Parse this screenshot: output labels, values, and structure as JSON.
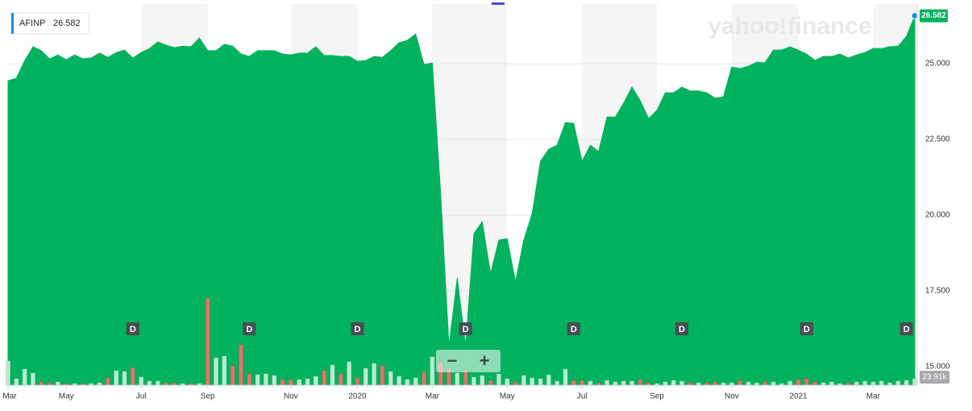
{
  "chart_data": {
    "type": "area",
    "watermark": "yahoo!finance",
    "categories": [
      "Mar",
      null,
      null,
      null,
      null,
      null,
      null,
      "May",
      null,
      null,
      null,
      null,
      null,
      null,
      null,
      null,
      "Jul",
      null,
      null,
      null,
      null,
      null,
      null,
      null,
      "Sep",
      null,
      null,
      null,
      null,
      null,
      null,
      null,
      null,
      null,
      "Nov",
      null,
      null,
      null,
      null,
      null,
      null,
      null,
      "2020",
      null,
      null,
      null,
      null,
      null,
      null,
      null,
      null,
      "Mar",
      null,
      null,
      null,
      null,
      null,
      null,
      null,
      null,
      "May",
      null,
      null,
      null,
      null,
      null,
      null,
      null,
      null,
      "Jul",
      null,
      null,
      null,
      null,
      null,
      null,
      null,
      null,
      "Sep",
      null,
      null,
      null,
      null,
      null,
      null,
      null,
      null,
      "Nov",
      null,
      null,
      null,
      null,
      null,
      null,
      null,
      "2021",
      null,
      null,
      null,
      null,
      null,
      null,
      null,
      null,
      "Mar",
      null,
      null,
      null,
      null,
      null
    ],
    "series": [
      {
        "name": "AFINP",
        "color": "#00b15d",
        "values": [
          24.44,
          24.52,
          25.1,
          25.56,
          25.43,
          25.16,
          25.29,
          25.13,
          25.29,
          25.16,
          25.19,
          25.35,
          25.21,
          25.37,
          25.45,
          25.19,
          25.37,
          25.5,
          25.72,
          25.61,
          25.53,
          25.58,
          25.56,
          25.85,
          25.43,
          25.43,
          25.64,
          25.58,
          25.32,
          25.24,
          25.43,
          25.43,
          25.43,
          25.32,
          25.29,
          25.35,
          25.35,
          25.56,
          25.27,
          25.27,
          25.24,
          25.24,
          25.08,
          25.11,
          25.24,
          25.21,
          25.43,
          25.69,
          25.77,
          25.98,
          24.97,
          25.03,
          20.72,
          15.67,
          17.93,
          15.67,
          19.39,
          19.79,
          18.06,
          19.18,
          19.23,
          17.8,
          19.18,
          20.05,
          21.78,
          22.18,
          22.31,
          23.06,
          23.03,
          21.78,
          22.31,
          22.1,
          23.24,
          23.24,
          23.7,
          24.23,
          23.78,
          23.19,
          23.46,
          24.04,
          24.04,
          24.23,
          24.1,
          24.1,
          24.04,
          23.86,
          23.91,
          24.89,
          24.84,
          24.92,
          25.05,
          25.03,
          25.45,
          25.45,
          25.56,
          25.45,
          25.32,
          25.11,
          25.24,
          25.24,
          25.32,
          25.19,
          25.29,
          25.37,
          25.5,
          25.5,
          25.56,
          25.58,
          25.9,
          26.582
        ]
      }
    ],
    "ylim": [
      14.39,
      26.97
    ],
    "yticks": [
      {
        "value": 15,
        "label": "15.000"
      },
      {
        "value": 17.5,
        "label": "17.500"
      },
      {
        "value": 20,
        "label": "20.000"
      },
      {
        "value": 22.5,
        "label": "22.500"
      },
      {
        "value": 25,
        "label": "25.000"
      }
    ],
    "grid": true,
    "volume": {
      "up_color": "#b9ecd0",
      "down_color": "#d9786b",
      "values": [
        90000,
        24000,
        60000,
        45000,
        12000,
        9000,
        12000,
        6000,
        6000,
        6000,
        6000,
        9000,
        27000,
        54000,
        51000,
        66000,
        30000,
        15000,
        15000,
        9000,
        9000,
        6000,
        6000,
        6000,
        324000,
        102000,
        108000,
        72000,
        150000,
        42000,
        39000,
        42000,
        36000,
        21000,
        21000,
        21000,
        24000,
        33000,
        54000,
        75000,
        42000,
        87000,
        27000,
        63000,
        81000,
        72000,
        51000,
        33000,
        21000,
        27000,
        48000,
        105000,
        84000,
        60000,
        45000,
        57000,
        30000,
        36000,
        18000,
        42000,
        24000,
        12000,
        36000,
        27000,
        24000,
        39000,
        15000,
        60000,
        18000,
        18000,
        15000,
        9000,
        18000,
        12000,
        15000,
        15000,
        21000,
        9000,
        6000,
        12000,
        18000,
        15000,
        9000,
        9000,
        9000,
        12000,
        9000,
        9000,
        18000,
        12000,
        9000,
        12000,
        12000,
        6000,
        15000,
        21000,
        24000,
        12000,
        9000,
        12000,
        6000,
        9000,
        12000,
        15000,
        12000,
        15000,
        9000,
        15000,
        18000,
        23910
      ],
      "value_labels": [
        null,
        null,
        null,
        null,
        null,
        null,
        null,
        null,
        null,
        null,
        null,
        null,
        null,
        null,
        null,
        null,
        null,
        null,
        null,
        null,
        null,
        null,
        null,
        null,
        null,
        null,
        null,
        null,
        null,
        null,
        null,
        null,
        null,
        null,
        null,
        null,
        null,
        null,
        null,
        null,
        null,
        null,
        null,
        null,
        null,
        null,
        null,
        null,
        null,
        null,
        null,
        null,
        null,
        null,
        null,
        null,
        null,
        null,
        null,
        null,
        null,
        null,
        null,
        null,
        null,
        null,
        null,
        null,
        null,
        null,
        null,
        null,
        null,
        null,
        null,
        null,
        null,
        null,
        null,
        null,
        null,
        null,
        null,
        null,
        null,
        null,
        null,
        null,
        null,
        null,
        null,
        null,
        null,
        null,
        null,
        null,
        null,
        null,
        null,
        null,
        null,
        null,
        null,
        null,
        null,
        null,
        null,
        null,
        null,
        "23.91k"
      ]
    },
    "dividends": {
      "label": "D",
      "at": [
        15,
        29,
        42,
        55,
        68,
        81,
        96,
        108
      ]
    },
    "zoom_buttons": [
      "−",
      "+"
    ]
  }
}
